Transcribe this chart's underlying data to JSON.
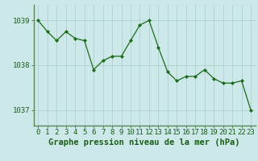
{
  "x": [
    0,
    1,
    2,
    3,
    4,
    5,
    6,
    7,
    8,
    9,
    10,
    11,
    12,
    13,
    14,
    15,
    16,
    17,
    18,
    19,
    20,
    21,
    22,
    23
  ],
  "y": [
    1039.0,
    1038.75,
    1038.55,
    1038.75,
    1038.6,
    1038.55,
    1037.9,
    1038.1,
    1038.2,
    1038.2,
    1038.55,
    1038.9,
    1039.0,
    1038.4,
    1037.85,
    1037.65,
    1037.75,
    1037.75,
    1037.9,
    1037.7,
    1037.6,
    1037.6,
    1037.65,
    1037.0
  ],
  "line_color": "#1a6b1a",
  "marker_color": "#1a6b1a",
  "bg_color": "#cce8e8",
  "grid_color": "#aacccc",
  "border_color": "#5a8a5a",
  "title": "Graphe pression niveau de la mer (hPa)",
  "xlim": [
    -0.5,
    23.5
  ],
  "ylim": [
    1036.65,
    1039.35
  ],
  "yticks": [
    1037,
    1038,
    1039
  ],
  "xticks": [
    0,
    1,
    2,
    3,
    4,
    5,
    6,
    7,
    8,
    9,
    10,
    11,
    12,
    13,
    14,
    15,
    16,
    17,
    18,
    19,
    20,
    21,
    22,
    23
  ],
  "title_fontsize": 7.5,
  "tick_fontsize": 6.5,
  "title_color": "#1a5c1a",
  "tick_color": "#1a5c1a"
}
